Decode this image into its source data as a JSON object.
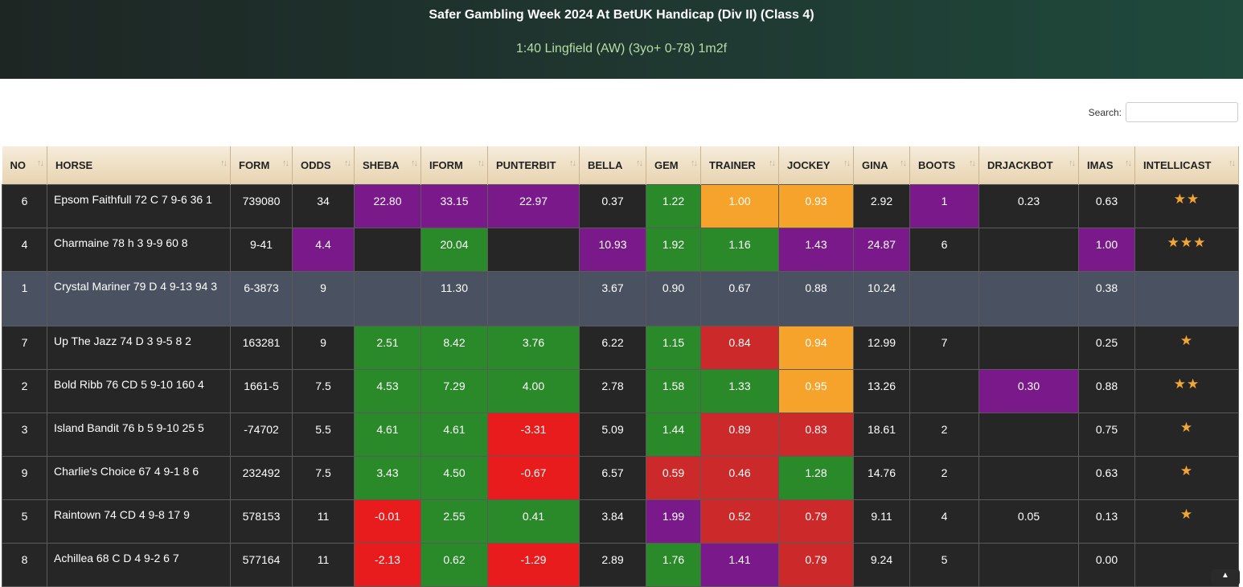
{
  "header": {
    "title": "Safer Gambling Week 2024 At BetUK Handicap (Div II) (Class 4)",
    "subtitle": "1:40 Lingfield (AW) (3yo+ 0-78) 1m2f"
  },
  "search": {
    "label": "Search:",
    "value": "",
    "placeholder": ""
  },
  "table": {
    "columns": [
      "NO",
      "HORSE",
      "FORM",
      "ODDS",
      "SHEBA",
      "IFORM",
      "PUNTERBIT",
      "BELLA",
      "GEM",
      "TRAINER",
      "JOCKEY",
      "GINA",
      "BOOTS",
      "DRJACKBOT",
      "IMAS",
      "INTELLICAST"
    ],
    "sort_icon": "↑↓",
    "rows": [
      {
        "cells": [
          "6",
          "Epsom Faithfull 72 C 7 9-6 36 1",
          "739080",
          "34",
          "22.80",
          "33.15",
          "22.97",
          "0.37",
          "1.22",
          "1.00",
          "0.93",
          "2.92",
          "1",
          "0.23",
          "0.63",
          "★★"
        ]
      },
      {
        "cells": [
          "4",
          "Charmaine 78 h 3 9-9 60 8",
          "9-41",
          "4.4",
          "",
          "20.04",
          "",
          "10.93",
          "1.92",
          "1.16",
          "1.43",
          "24.87",
          "6",
          "",
          "1.00",
          "★★★"
        ]
      },
      {
        "cells": [
          "1",
          "Crystal Mariner 79 D 4 9-13 94 3",
          "6-3873",
          "9",
          "",
          "11.30",
          "",
          "3.67",
          "0.90",
          "0.67",
          "0.88",
          "10.24",
          "",
          "",
          "0.38",
          ""
        ]
      },
      {
        "cells": [
          "7",
          "Up The Jazz 74 D 3 9-5 8 2",
          "163281",
          "9",
          "2.51",
          "8.42",
          "3.76",
          "6.22",
          "1.15",
          "0.84",
          "0.94",
          "12.99",
          "7",
          "",
          "0.25",
          "★"
        ]
      },
      {
        "cells": [
          "2",
          "Bold Ribb 76 CD 5 9-10 160 4",
          "1661-5",
          "7.5",
          "4.53",
          "7.29",
          "4.00",
          "2.78",
          "1.58",
          "1.33",
          "0.95",
          "13.26",
          "",
          "0.30",
          "0.88",
          "★★"
        ]
      },
      {
        "cells": [
          "3",
          "Island Bandit 76 b 5 9-10 25 5",
          "-74702",
          "5.5",
          "4.61",
          "4.61",
          "-3.31",
          "5.09",
          "1.44",
          "0.89",
          "0.83",
          "18.61",
          "2",
          "",
          "0.75",
          "★"
        ]
      },
      {
        "cells": [
          "9",
          "Charlie's Choice 67 4 9-1 8 6",
          "232492",
          "7.5",
          "3.43",
          "4.50",
          "-0.67",
          "6.57",
          "0.59",
          "0.46",
          "1.28",
          "14.76",
          "2",
          "",
          "0.63",
          "★"
        ]
      },
      {
        "cells": [
          "5",
          "Raintown 74 CD 4 9-8 17 9",
          "578153",
          "11",
          "-0.01",
          "2.55",
          "0.41",
          "3.84",
          "1.99",
          "0.52",
          "0.79",
          "9.11",
          "4",
          "0.05",
          "0.13",
          "★"
        ]
      },
      {
        "cells": [
          "8",
          "Achillea 68 C D 4 9-2 6 7",
          "577164",
          "11",
          "-2.13",
          "0.62",
          "-1.29",
          "2.89",
          "1.76",
          "1.41",
          "0.79",
          "9.24",
          "5",
          "",
          "0.00",
          ""
        ]
      }
    ]
  },
  "cell_colors": {
    "green": "#2a8a2a",
    "red": "#e81c1c",
    "dark_red": "#cc2a2a",
    "purple": "#7a1a8a",
    "orange": "#f6a32b",
    "default": "#262626",
    "highlight_row": "#4a5261",
    "star": "#f4a634"
  }
}
